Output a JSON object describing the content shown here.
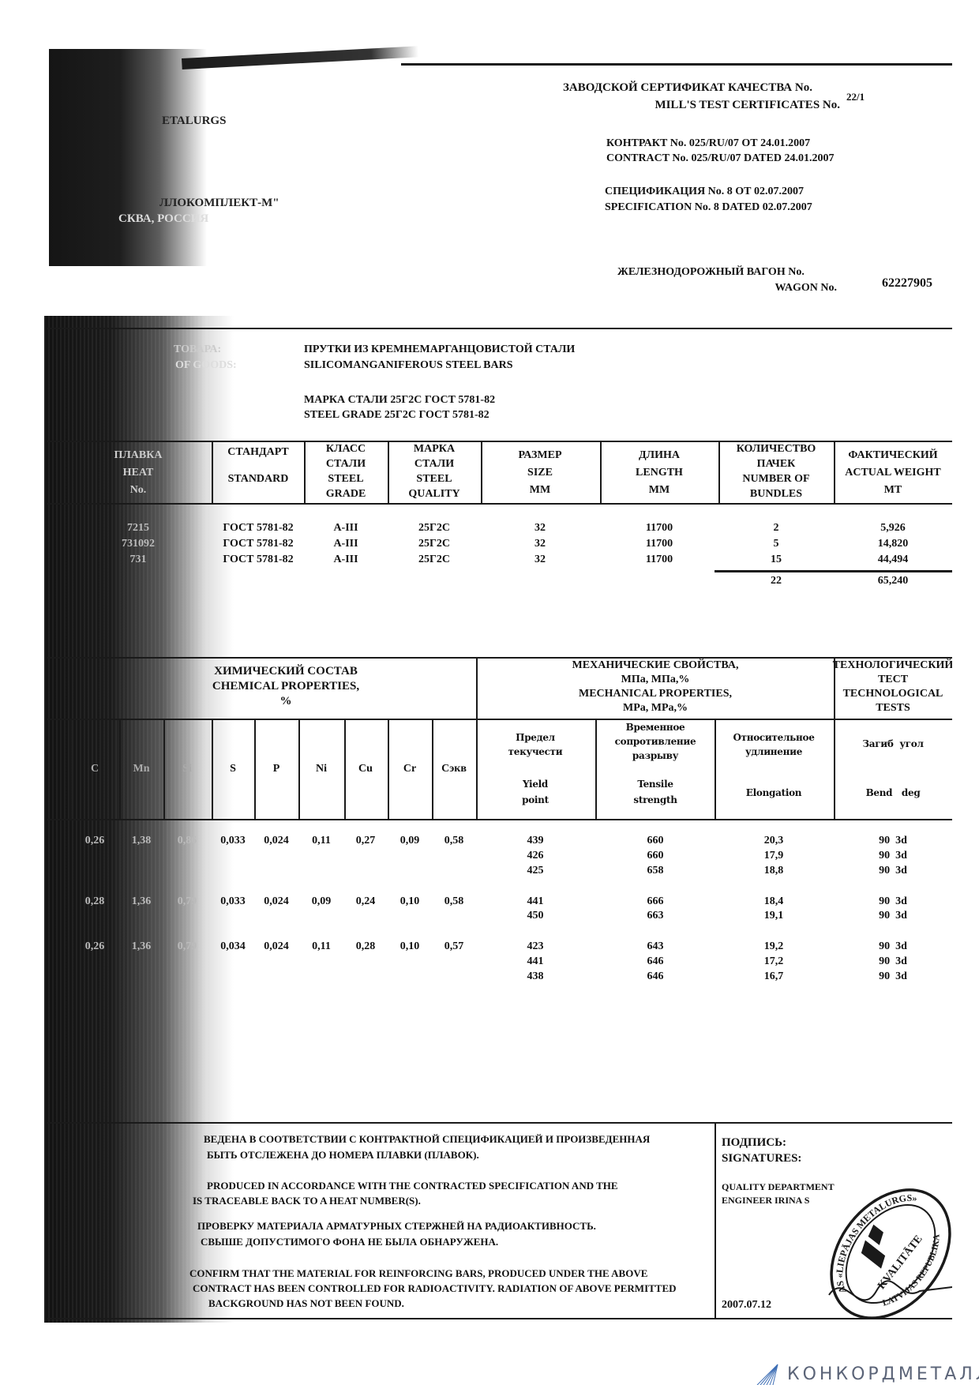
{
  "header": {
    "title_ru": "ЗАВОДСКОЙ СЕРТИФИКАТ КАЧЕСТВА  No.",
    "title_en": "MILL'S TEST CERTIFICATES  No.",
    "cert_no": "22/1",
    "contract_ru": "КОНТРАКТ No. 025/RU/07 ОТ 24.01.2007",
    "contract_en": "CONTRACT No. 025/RU/07 DATED 24.01.2007",
    "spec_ru": "СПЕЦИФИКАЦИЯ No. 8 ОТ 02.07.2007",
    "spec_en": "SPECIFICATION No. 8 DATED 02.07.2007",
    "wagon_ru": "ЖЕЛЕЗНОДОРОЖНЫЙ ВАГОН No.",
    "wagon_en": "WAGON No.",
    "wagon_no": "62227905"
  },
  "parties_fragments": [
    "ETALURGS",
    "ЛЛОКОМПЛЕКТ-М\"",
    "СКВА, РОССИЯ"
  ],
  "goods": {
    "label_fragments": [
      "ТОВАРА:",
      "OF GOODS:"
    ],
    "desc_ru": "ПРУТКИ ИЗ КРЕМНЕМАРГАНЦОВИСТОЙ СТАЛИ",
    "desc_en": "SILICOMANGANIFEROUS STEEL BARS",
    "grade_ru": "МАРКА СТАЛИ  25Г2С ГОСТ 5781-82",
    "grade_en": "STEEL GRADE 25Г2С ГОСТ 5781-82"
  },
  "shipment": {
    "headers": [
      [
        "ПЛАВКА",
        "HEAT",
        "No."
      ],
      [
        "СТАНДАРТ",
        "",
        "STANDARD"
      ],
      [
        "КЛАСС",
        "СТАЛИ",
        "STEEL",
        "GRADE"
      ],
      [
        "МАРКА",
        "СТАЛИ",
        "STEEL",
        "QUALITY"
      ],
      [
        "РАЗМЕР",
        "SIZE",
        "MM"
      ],
      [
        "ДЛИНА",
        "LENGTH",
        "MM"
      ],
      [
        "КОЛИЧЕСТВО",
        "ПАЧЕК",
        "NUMBER OF",
        "BUNDLES"
      ],
      [
        "ФАКТИЧЕСКИЙ",
        "ACTUAL WEIGHT",
        "MT"
      ]
    ],
    "rows": [
      [
        "7215",
        "ГОСТ 5781-82",
        "A-III",
        "25Г2С",
        "32",
        "11700",
        "2",
        "5,926"
      ],
      [
        "731092",
        "ГОСТ 5781-82",
        "A-III",
        "25Г2С",
        "32",
        "11700",
        "5",
        "14,820"
      ],
      [
        "731",
        "ГОСТ 5781-82",
        "A-III",
        "25Г2С",
        "32",
        "11700",
        "15",
        "44,494"
      ]
    ],
    "total_bundles": "22",
    "total_weight": "65,240"
  },
  "properties": {
    "chem_title": [
      "ХИМИЧЕСКИЙ СОСТАВ",
      "CHEMICAL PROPERTIES,",
      "%"
    ],
    "mech_title": [
      "МЕХАНИЧЕСКИЕ СВОЙСТВА,",
      "МПа, МПа,%",
      "MECHANICAL PROPERTIES,",
      "MPa, MPa,%"
    ],
    "tech_title": [
      "ТЕХНОЛОГИЧЕСКИЙ",
      "ТЕСТ",
      "TECHNOLOGICAL",
      "TESTS"
    ],
    "chem_cols": [
      "C",
      "Mn",
      "Si",
      "S",
      "P",
      "Ni",
      "Cu",
      "Cr",
      "Cэкв"
    ],
    "mech_cols": [
      {
        "ru": [
          "Предел",
          "текучести"
        ],
        "en": [
          "Yield",
          "point"
        ]
      },
      {
        "ru": [
          "Временное",
          "сопротивление",
          "разрыву"
        ],
        "en": [
          "Tensile",
          "strength"
        ]
      },
      {
        "ru": [
          "Относительное",
          "удлинение"
        ],
        "en": [
          "Elongation"
        ]
      }
    ],
    "bend_col": {
      "ru": "Загиб  угол",
      "en": "Bend   deg"
    },
    "heats": [
      {
        "chem": [
          "0,26",
          "1,38",
          "0,86",
          "0,033",
          "0,024",
          "0,11",
          "0,27",
          "0,09",
          "0,58"
        ],
        "tests": [
          [
            "439",
            "660",
            "20,3",
            "90  3d"
          ],
          [
            "426",
            "660",
            "17,9",
            "90  3d"
          ],
          [
            "425",
            "658",
            "18,8",
            "90  3d"
          ]
        ]
      },
      {
        "chem": [
          "0,28",
          "1,36",
          "0,79",
          "0,033",
          "0,024",
          "0,09",
          "0,24",
          "0,10",
          "0,58"
        ],
        "tests": [
          [
            "441",
            "666",
            "18,4",
            "90  3d"
          ],
          [
            "450",
            "663",
            "19,1",
            "90  3d"
          ]
        ]
      },
      {
        "chem": [
          "0,26",
          "1,36",
          "0,79",
          "0,034",
          "0,024",
          "0,11",
          "0,28",
          "0,10",
          "0,57"
        ],
        "tests": [
          [
            "423",
            "643",
            "19,2",
            "90  3d"
          ],
          [
            "441",
            "646",
            "17,2",
            "90  3d"
          ],
          [
            "438",
            "646",
            "16,7",
            "90  3d"
          ]
        ]
      }
    ]
  },
  "notes": [
    "ВЕДЕНА В СООТВЕТСТВИИ С КОНТРАКТНОЙ СПЕЦИФИКАЦИЕЙ И ПРОИЗВЕДЕННАЯ",
    "БЫТЬ ОТСЛЕЖЕНА ДО НОМЕРА ПЛАВКИ (ПЛАВОК).",
    "PRODUCED IN ACCORDANCE WITH THE CONTRACTED SPECIFICATION AND THE",
    "IS TRACEABLE BACK TO A HEAT NUMBER(S).",
    "ПРОВЕРКУ МАТЕРИАЛА АРМАТУРНЫХ СТЕРЖНЕЙ НА РАДИОАКТИВНОСТЬ.",
    "СВЫШЕ ДОПУСТИМОГО ФОНА НЕ БЫЛА ОБНАРУЖЕНА.",
    "CONFIRM THAT THE MATERIAL FOR REINFORCING BARS, PRODUCED UNDER THE ABOVE",
    "CONTRACT HAS BEEN CONTROLLED FOR RADIOACTIVITY.  RADIATION OF ABOVE PERMITTED",
    "BACKGROUND HAS NOT BEEN FOUND."
  ],
  "signatures": {
    "label_ru": "ПОДПИСЬ:",
    "label_en": "SIGNATURES:",
    "dept": "QUALITY DEPARTMENT",
    "engineer": "ENGINEER  IRINA S",
    "date": "2007.07.12"
  },
  "stamp": {
    "outer_text": "AS «LIEPĀJAS METALURGS»",
    "inner_text": "KVALITĀTE",
    "bottom_text": "LATVIJAS REPUBLIKA",
    "color": "#1a1a1a"
  },
  "watermark_logo": {
    "text": "КОНКОРДМЕТАЛЛ",
    "color": "#5b6478",
    "icon_color": "#3f6fb5"
  }
}
